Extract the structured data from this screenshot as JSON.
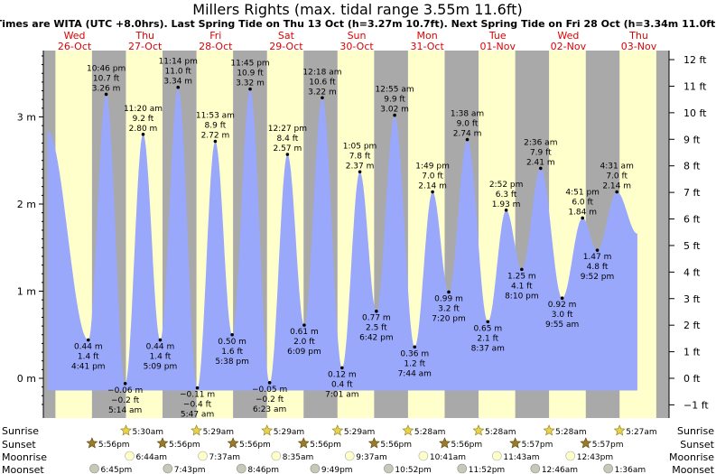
{
  "title": "Millers Rights (max. tidal range 3.55m 11.6ft)",
  "subtitle": "Times are WITA (UTC +8.0hrs). Last Spring Tide on Thu 13 Oct (h=3.27m 10.7ft). Next Spring Tide on Fri 28 Oct (h=3.34m 11.0ft)",
  "days": [
    {
      "name": "Wed",
      "date": "26-Oct"
    },
    {
      "name": "Thu",
      "date": "27-Oct"
    },
    {
      "name": "Fri",
      "date": "28-Oct"
    },
    {
      "name": "Sat",
      "date": "29-Oct"
    },
    {
      "name": "Sun",
      "date": "30-Oct"
    },
    {
      "name": "Mon",
      "date": "31-Oct"
    },
    {
      "name": "Tue",
      "date": "01-Nov"
    },
    {
      "name": "Wed",
      "date": "02-Nov"
    },
    {
      "name": "Thu",
      "date": "03-Nov"
    }
  ],
  "rows": {
    "sunrise": "Sunrise",
    "sunset": "Sunset",
    "moonrise": "Moonrise",
    "moonset": "Moonset"
  },
  "colors": {
    "water": "#9aa8fb",
    "day": "#ffffcc",
    "night": "#a9a9a9",
    "daylabel": "#e00000"
  },
  "chart_data": {
    "type": "area",
    "ylabel_left_unit": "m",
    "ylabel_right_unit": "ft",
    "y_ticks_m": [
      "0 m",
      "1 m",
      "2 m",
      "3 m"
    ],
    "y_ticks_ft": [
      "−1 ft",
      "0 ft",
      "1 ft",
      "2 ft",
      "3 ft",
      "4 ft",
      "5 ft",
      "6 ft",
      "7 ft",
      "8 ft",
      "9 ft",
      "10 ft",
      "11 ft",
      "12 ft"
    ],
    "ylim_m": [
      -0.35,
      3.85
    ],
    "tides": [
      {
        "t": 2.8,
        "h": 2.84,
        "label": null
      },
      {
        "t": 16.68,
        "h": 0.44,
        "m": "0.44 m",
        "ft": "1.4 ft",
        "time": "4:41 pm"
      },
      {
        "t": 22.77,
        "h": 3.26,
        "m": "3.26 m",
        "ft": "10.7 ft",
        "time": "10:46 pm"
      },
      {
        "t": 29.23,
        "h": -0.06,
        "m": "−0.06 m",
        "ft": "−0.2 ft",
        "time": "5:14 am"
      },
      {
        "t": 35.33,
        "h": 2.8,
        "m": "2.80 m",
        "ft": "9.2 ft",
        "time": "11:20 am"
      },
      {
        "t": 41.15,
        "h": 0.44,
        "m": "0.44 m",
        "ft": "1.4 ft",
        "time": "5:09 pm"
      },
      {
        "t": 47.23,
        "h": 3.34,
        "m": "3.34 m",
        "ft": "11.0 ft",
        "time": "11:14 pm"
      },
      {
        "t": 53.78,
        "h": -0.11,
        "m": "−0.11 m",
        "ft": "−0.4 ft",
        "time": "5:47 am"
      },
      {
        "t": 59.88,
        "h": 2.72,
        "m": "2.72 m",
        "ft": "8.9 ft",
        "time": "11:53 am"
      },
      {
        "t": 65.63,
        "h": 0.5,
        "m": "0.50 m",
        "ft": "1.6 ft",
        "time": "5:38 pm"
      },
      {
        "t": 71.75,
        "h": 3.32,
        "m": "3.32 m",
        "ft": "10.9 ft",
        "time": "11:45 pm"
      },
      {
        "t": 78.38,
        "h": -0.05,
        "m": "−0.05 m",
        "ft": "−0.2 ft",
        "time": "6:23 am"
      },
      {
        "t": 84.45,
        "h": 2.57,
        "m": "2.57 m",
        "ft": "8.4 ft",
        "time": "12:27 pm"
      },
      {
        "t": 90.15,
        "h": 0.61,
        "m": "0.61 m",
        "ft": "2.0 ft",
        "time": "6:09 pm"
      },
      {
        "t": 96.3,
        "h": 3.22,
        "m": "3.22 m",
        "ft": "10.6 ft",
        "time": "12:18 am"
      },
      {
        "t": 103.02,
        "h": 0.12,
        "m": "0.12 m",
        "ft": "0.4 ft",
        "time": "7:01 am"
      },
      {
        "t": 109.08,
        "h": 2.37,
        "m": "2.37 m",
        "ft": "7.8 ft",
        "time": "1:05 pm"
      },
      {
        "t": 114.7,
        "h": 0.77,
        "m": "0.77 m",
        "ft": "2.5 ft",
        "time": "6:42 pm"
      },
      {
        "t": 120.92,
        "h": 3.02,
        "m": "3.02 m",
        "ft": "9.9 ft",
        "time": "12:55 am"
      },
      {
        "t": 127.73,
        "h": 0.36,
        "m": "0.36 m",
        "ft": "1.2 ft",
        "time": "7:44 am"
      },
      {
        "t": 133.82,
        "h": 2.14,
        "m": "2.14 m",
        "ft": "7.0 ft",
        "time": "1:49 pm"
      },
      {
        "t": 139.33,
        "h": 0.99,
        "m": "0.99 m",
        "ft": "3.2 ft",
        "time": "7:20 pm"
      },
      {
        "t": 145.63,
        "h": 2.74,
        "m": "2.74 m",
        "ft": "9.0 ft",
        "time": "1:38 am"
      },
      {
        "t": 152.62,
        "h": 0.65,
        "m": "0.65 m",
        "ft": "2.1 ft",
        "time": "8:37 am"
      },
      {
        "t": 158.87,
        "h": 1.93,
        "m": "1.93 m",
        "ft": "6.3 ft",
        "time": "2:52 pm"
      },
      {
        "t": 164.17,
        "h": 1.25,
        "m": "1.25 m",
        "ft": "4.1 ft",
        "time": "8:10 pm"
      },
      {
        "t": 170.6,
        "h": 2.41,
        "m": "2.41 m",
        "ft": "7.9 ft",
        "time": "2:36 am"
      },
      {
        "t": 177.92,
        "h": 0.92,
        "m": "0.92 m",
        "ft": "3.0 ft",
        "time": "9:55 am"
      },
      {
        "t": 184.85,
        "h": 1.84,
        "m": "1.84 m",
        "ft": "6.0 ft",
        "time": "4:51 pm"
      },
      {
        "t": 189.87,
        "h": 1.47,
        "m": "1.47 m",
        "ft": "4.8 ft",
        "time": "9:52 pm"
      },
      {
        "t": 196.52,
        "h": 2.14,
        "m": "2.14 m",
        "ft": "7.0 ft",
        "time": "4:31 am"
      },
      {
        "t": 203.5,
        "h": 1.66,
        "label": null
      }
    ],
    "sunrise": [
      "5:30am",
      "5:29am",
      "5:29am",
      "5:29am",
      "5:28am",
      "5:28am",
      "5:28am",
      "5:27am"
    ],
    "sunset": [
      "5:56pm",
      "5:56pm",
      "5:56pm",
      "5:56pm",
      "5:56pm",
      "5:56pm",
      "5:57pm",
      "5:57pm"
    ],
    "moonrise": [
      "6:44am",
      "7:37am",
      "8:35am",
      "9:37am",
      "10:41am",
      "11:43am",
      "12:43pm"
    ],
    "moonset": [
      "6:45pm",
      "7:43pm",
      "8:46pm",
      "9:49pm",
      "10:52pm",
      "11:52pm",
      "12:46am",
      "1:36am"
    ]
  }
}
